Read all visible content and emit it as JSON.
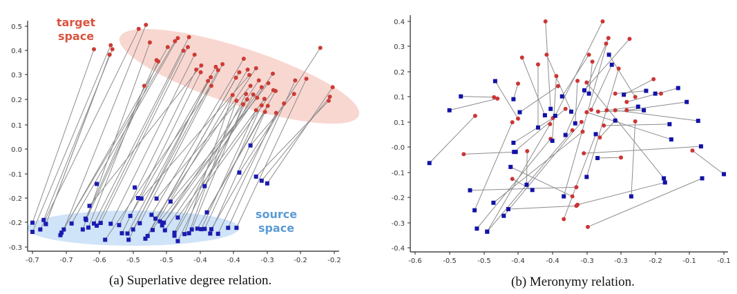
{
  "chart_data": [
    {
      "type": "scatter",
      "id": "a",
      "caption": "(a) Superlative degree relation.",
      "title": "",
      "xlabel": "",
      "ylabel": "",
      "x_tick_labels": [
        "-0.7",
        "-0.7",
        "-0.6",
        "-0.5",
        "-0.5",
        "-0.4",
        "-0.4",
        "-0.3",
        "-0.2",
        "-0.2"
      ],
      "y_tick_labels": [
        "0.5",
        "0.4",
        "0.3",
        "0.2",
        "0.1",
        "0.0",
        "-0.1",
        "-0.2",
        "-0.2",
        "-0.3"
      ],
      "xlim": [
        -0.7,
        -0.16
      ],
      "ylim": [
        -0.315,
        0.5
      ],
      "grid": false,
      "annotations": [
        {
          "text_lines": [
            "target",
            "space"
          ],
          "color": "#d9533f",
          "region": "target"
        },
        {
          "text_lines": [
            "source",
            "space"
          ],
          "color": "#5b9bd5",
          "region": "source"
        }
      ],
      "regions": [
        {
          "name": "target-space",
          "color": "#f9d7d1",
          "center": [
            -0.33,
            0.315
          ],
          "rx": 0.225,
          "ry": 0.105,
          "rotation_deg": 18
        },
        {
          "name": "source-space",
          "color": "#cfe3f9",
          "center": [
            -0.52,
            -0.245
          ],
          "rx": 0.19,
          "ry": 0.065,
          "rotation_deg": 0
        }
      ],
      "series": [
        {
          "name": "source",
          "marker": "square",
          "color": "#1b1bb0"
        },
        {
          "name": "target",
          "marker": "circle",
          "color": "#cc3b35"
        }
      ],
      "pairs": [
        [
          [
            -0.7,
            -0.225
          ],
          [
            -0.59,
            0.415
          ]
        ],
        [
          [
            -0.7,
            -0.259
          ],
          [
            -0.56,
            0.43
          ]
        ],
        [
          [
            -0.68,
            -0.215
          ],
          [
            -0.557,
            0.415
          ]
        ],
        [
          [
            -0.676,
            -0.23
          ],
          [
            -0.562,
            0.395
          ]
        ],
        [
          [
            -0.676,
            -0.23
          ],
          [
            -0.562,
            0.395
          ]
        ],
        [
          [
            -0.686,
            -0.25
          ],
          [
            -0.51,
            0.49
          ]
        ],
        [
          [
            -0.644,
            -0.25
          ],
          [
            -0.497,
            0.505
          ]
        ],
        [
          [
            -0.61,
            -0.25
          ],
          [
            -0.49,
            0.44
          ]
        ],
        [
          [
            -0.605,
            -0.21
          ],
          [
            -0.478,
            0.375
          ]
        ],
        [
          [
            -0.604,
            -0.215
          ],
          [
            -0.475,
            0.37
          ]
        ],
        [
          [
            -0.6,
            -0.243
          ],
          [
            -0.5,
            0.28
          ]
        ],
        [
          [
            -0.648,
            -0.262
          ],
          [
            -0.445,
            0.445
          ]
        ],
        [
          [
            -0.65,
            -0.271
          ],
          [
            -0.458,
            0.423
          ]
        ],
        [
          [
            -0.63,
            -0.228
          ],
          [
            -0.44,
            0.456
          ]
        ],
        [
          [
            -0.59,
            -0.228
          ],
          [
            -0.42,
            0.46
          ]
        ],
        [
          [
            -0.585,
            -0.236
          ],
          [
            -0.43,
            0.41
          ]
        ],
        [
          [
            -0.56,
            -0.229
          ],
          [
            -0.41,
            0.395
          ]
        ],
        [
          [
            -0.545,
            -0.234
          ],
          [
            -0.407,
            0.34
          ]
        ],
        [
          [
            -0.598,
            -0.163
          ],
          [
            -0.398,
            0.355
          ]
        ],
        [
          [
            -0.578,
            -0.226
          ],
          [
            -0.422,
            0.423
          ]
        ],
        [
          [
            -0.525,
            -0.2
          ],
          [
            -0.372,
            0.35
          ]
        ],
        [
          [
            -0.54,
            -0.264
          ],
          [
            -0.399,
            0.33
          ]
        ],
        [
          [
            -0.53,
            -0.265
          ],
          [
            -0.381,
            0.312
          ]
        ],
        [
          [
            -0.528,
            -0.288
          ],
          [
            -0.386,
            0.298
          ]
        ],
        [
          [
            -0.57,
            -0.288
          ],
          [
            -0.38,
            0.28
          ]
        ],
        [
          [
            -0.52,
            -0.25
          ],
          [
            -0.368,
            0.338
          ]
        ],
        [
          [
            -0.508,
            -0.227
          ],
          [
            -0.36,
            0.36
          ]
        ],
        [
          [
            -0.498,
            -0.284
          ],
          [
            -0.33,
            0.33
          ]
        ],
        [
          [
            -0.494,
            -0.274
          ],
          [
            -0.336,
            0.31
          ]
        ],
        [
          [
            -0.487,
            -0.196
          ],
          [
            -0.322,
            0.38
          ]
        ],
        [
          [
            -0.485,
            -0.252
          ],
          [
            -0.315,
            0.34
          ]
        ],
        [
          [
            -0.48,
            -0.21
          ],
          [
            -0.3,
            0.345
          ]
        ],
        [
          [
            -0.472,
            -0.22
          ],
          [
            -0.278,
            0.29
          ]
        ],
        [
          [
            -0.468,
            -0.235
          ],
          [
            -0.29,
            0.275
          ]
        ],
        [
          [
            -0.465,
            -0.225
          ],
          [
            -0.295,
            0.3
          ]
        ],
        [
          [
            -0.463,
            -0.253
          ],
          [
            -0.27,
            0.325
          ]
        ],
        [
          [
            -0.505,
            -0.136
          ],
          [
            -0.312,
            0.32
          ]
        ],
        [
          [
            -0.478,
            -0.136
          ],
          [
            -0.31,
            0.28
          ]
        ],
        [
          [
            -0.446,
            -0.262
          ],
          [
            -0.318,
            0.25
          ]
        ],
        [
          [
            -0.446,
            -0.273
          ],
          [
            -0.305,
            0.248
          ]
        ],
        [
          [
            -0.44,
            -0.293
          ],
          [
            -0.316,
            0.23
          ]
        ],
        [
          [
            -0.428,
            -0.267
          ],
          [
            -0.342,
            0.246
          ]
        ],
        [
          [
            -0.42,
            -0.264
          ],
          [
            -0.335,
            0.225
          ]
        ],
        [
          [
            -0.415,
            -0.25
          ],
          [
            -0.323,
            0.212
          ]
        ],
        [
          [
            -0.453,
            -0.147
          ],
          [
            -0.298,
            0.236
          ]
        ],
        [
          [
            -0.44,
            -0.206
          ],
          [
            -0.285,
            0.232
          ]
        ],
        [
          [
            -0.392,
            -0.248
          ],
          [
            -0.29,
            0.208
          ]
        ],
        [
          [
            -0.388,
            -0.187
          ],
          [
            -0.279,
            0.206
          ]
        ],
        [
          [
            -0.392,
            -0.09
          ],
          [
            -0.269,
            0.264
          ]
        ],
        [
          [
            -0.382,
            -0.265
          ],
          [
            -0.284,
            0.184
          ]
        ],
        [
          [
            -0.368,
            -0.266
          ],
          [
            -0.264,
            0.18
          ]
        ],
        [
          [
            -0.405,
            -0.247
          ],
          [
            -0.265,
            0.261
          ]
        ],
        [
          [
            -0.398,
            -0.249
          ],
          [
            -0.3,
            0.19
          ]
        ],
        [
          [
            -0.38,
            -0.249
          ],
          [
            -0.25,
            0.215
          ]
        ],
        [
          [
            -0.35,
            -0.244
          ],
          [
            -0.23,
            0.3
          ]
        ],
        [
          [
            -0.335,
            -0.244
          ],
          [
            -0.21,
            0.306
          ]
        ],
        [
          [
            -0.31,
            0.06
          ],
          [
            -0.232,
            0.25
          ]
        ],
        [
          [
            -0.33,
            -0.04
          ],
          [
            -0.185,
            0.42
          ]
        ],
        [
          [
            -0.3,
            -0.055
          ],
          [
            -0.17,
            0.225
          ]
        ],
        [
          [
            -0.29,
            -0.07
          ],
          [
            -0.168,
            0.24
          ]
        ],
        [
          [
            -0.28,
            -0.08
          ],
          [
            -0.163,
            0.275
          ]
        ]
      ],
      "extra_points": [
        {
          "series": "source",
          "x": -0.585,
          "y": -0.082
        },
        {
          "series": "source",
          "x": -0.511,
          "y": -0.134
        },
        {
          "series": "source",
          "x": -0.517,
          "y": -0.095
        }
      ]
    },
    {
      "type": "scatter",
      "id": "b",
      "caption": "(b) Meronymy relation.",
      "title": "",
      "xlabel": "",
      "ylabel": "",
      "x_tick_labels": [
        "-0.6",
        "-0.5",
        "-0.5",
        "-0.4",
        "-0.4",
        "-0.3",
        "-0.3",
        "-0.2",
        "-0.1",
        "-0.1"
      ],
      "y_tick_labels": [
        "0.4",
        "0.3",
        "0.2",
        "0.1",
        "0.1",
        "-0.0",
        "-0.1",
        "-0.2",
        "-0.3",
        "-0.4"
      ],
      "xlim": [
        -0.6,
        -0.06
      ],
      "ylim": [
        -0.415,
        0.4
      ],
      "grid": false,
      "series": [
        {
          "name": "source",
          "marker": "square",
          "color": "#1212a8"
        },
        {
          "name": "target",
          "marker": "circle",
          "color": "#cc3535"
        }
      ],
      "pairs": [
        [
          [
            -0.575,
            -0.11
          ],
          [
            -0.495,
            0.06
          ]
        ],
        [
          [
            -0.54,
            0.08
          ],
          [
            -0.456,
            0.122
          ]
        ],
        [
          [
            -0.52,
            0.13
          ],
          [
            -0.462,
            0.127
          ]
        ],
        [
          [
            -0.504,
            -0.208
          ],
          [
            -0.318,
            -0.197
          ]
        ],
        [
          [
            -0.496,
            -0.28
          ],
          [
            -0.43,
            0.037
          ]
        ],
        [
          [
            -0.492,
            -0.346
          ],
          [
            -0.363,
            -0.023
          ]
        ],
        [
          [
            -0.474,
            -0.357
          ],
          [
            -0.364,
            0.03
          ]
        ],
        [
          [
            -0.474,
            -0.357
          ],
          [
            -0.325,
            0.008
          ]
        ],
        [
          [
            -0.463,
            -0.253
          ],
          [
            -0.307,
            0.003
          ]
        ],
        [
          [
            -0.445,
            -0.3
          ],
          [
            -0.309,
            0.038
          ]
        ],
        [
          [
            -0.437,
            -0.276
          ],
          [
            -0.318,
            -0.264
          ]
        ],
        [
          [
            -0.428,
            -0.037
          ],
          [
            -0.359,
            0.052
          ]
        ],
        [
          [
            -0.427,
            -0.07
          ],
          [
            -0.337,
            0.085
          ]
        ],
        [
          [
            -0.424,
            -0.07
          ],
          [
            -0.515,
            -0.078
          ]
        ],
        [
          [
            -0.433,
            -0.124
          ],
          [
            -0.325,
            -0.23
          ]
        ],
        [
          [
            -0.46,
            0.185
          ],
          [
            -0.42,
            0.05
          ]
        ],
        [
          [
            -0.428,
            0.12
          ],
          [
            -0.42,
            0.176
          ]
        ],
        [
          [
            -0.417,
            0.073
          ],
          [
            -0.35,
            0.167
          ]
        ],
        [
          [
            -0.405,
            -0.188
          ],
          [
            -0.404,
            -0.067
          ]
        ],
        [
          [
            -0.395,
            -0.207
          ],
          [
            -0.43,
            -0.167
          ]
        ],
        [
          [
            -0.385,
            0.018
          ],
          [
            -0.385,
            0.245
          ]
        ],
        [
          [
            -0.373,
            0.062
          ],
          [
            -0.413,
            0.27
          ]
        ],
        [
          [
            -0.363,
            0.085
          ],
          [
            -0.372,
            0.4
          ]
        ],
        [
          [
            -0.36,
            -0.03
          ],
          [
            -0.353,
            0.203
          ]
        ],
        [
          [
            -0.355,
            0.06
          ],
          [
            -0.272,
            0.4
          ]
        ],
        [
          [
            -0.343,
            0.13
          ],
          [
            -0.296,
            0.28
          ]
        ],
        [
          [
            -0.34,
            -0.23
          ],
          [
            -0.262,
            0.34
          ]
        ],
        [
          [
            -0.337,
            -0.009
          ],
          [
            -0.266,
            0.32
          ]
        ],
        [
          [
            -0.327,
            0.075
          ],
          [
            -0.37,
            0.28
          ]
        ],
        [
          [
            -0.32,
            0.033
          ],
          [
            -0.316,
            0.186
          ]
        ],
        [
          [
            -0.304,
            0.152
          ],
          [
            -0.225,
            0.337
          ]
        ],
        [
          [
            -0.3,
            -0.16
          ],
          [
            -0.244,
            0.23
          ]
        ],
        [
          [
            -0.296,
            0.14
          ],
          [
            -0.29,
            0.255
          ]
        ],
        [
          [
            -0.284,
            -0.006
          ],
          [
            -0.34,
            -0.312
          ]
        ],
        [
          [
            -0.281,
            -0.092
          ],
          [
            -0.24,
            -0.09
          ]
        ],
        [
          [
            -0.261,
            0.28
          ],
          [
            -0.215,
            0.128
          ]
        ],
        [
          [
            -0.256,
            0.244
          ],
          [
            -0.292,
            0.082
          ]
        ],
        [
          [
            -0.25,
            0.043
          ],
          [
            -0.277,
            -0.018
          ]
        ],
        [
          [
            -0.235,
            0.136
          ],
          [
            -0.183,
            0.192
          ]
        ],
        [
          [
            -0.222,
            -0.23
          ],
          [
            -0.215,
            0.04
          ]
        ],
        [
          [
            -0.21,
            0.093
          ],
          [
            -0.265,
            0.08
          ]
        ],
        [
          [
            -0.2,
            0.08
          ],
          [
            -0.28,
            0.075
          ]
        ],
        [
          [
            -0.196,
            0.15
          ],
          [
            -0.25,
            0.14
          ]
        ],
        [
          [
            -0.18,
            0.14
          ],
          [
            -0.17,
            0.14
          ]
        ],
        [
          [
            -0.14,
            0.16
          ],
          [
            -0.23,
            0.11
          ]
        ],
        [
          [
            -0.125,
            0.11
          ],
          [
            -0.23,
            0.08
          ]
        ],
        [
          [
            -0.06,
            -0.15
          ],
          [
            -0.115,
            -0.065
          ]
        ],
        [
          [
            -0.165,
            -0.165
          ],
          [
            -0.3,
            0.18
          ]
        ],
        [
          [
            -0.163,
            -0.18
          ],
          [
            -0.316,
            -0.26
          ]
        ],
        [
          [
            -0.155,
            0.03
          ],
          [
            -0.27,
            0.025
          ]
        ],
        [
          [
            -0.152,
            -0.025
          ],
          [
            -0.3,
            0.073
          ]
        ],
        [
          [
            -0.105,
            0.042
          ],
          [
            -0.25,
            0.08
          ]
        ],
        [
          [
            -0.1,
            -0.05
          ],
          [
            -0.305,
            -0.075
          ]
        ],
        [
          [
            -0.098,
            -0.165
          ],
          [
            -0.298,
            -0.34
          ]
        ]
      ],
      "extra_points": []
    }
  ]
}
